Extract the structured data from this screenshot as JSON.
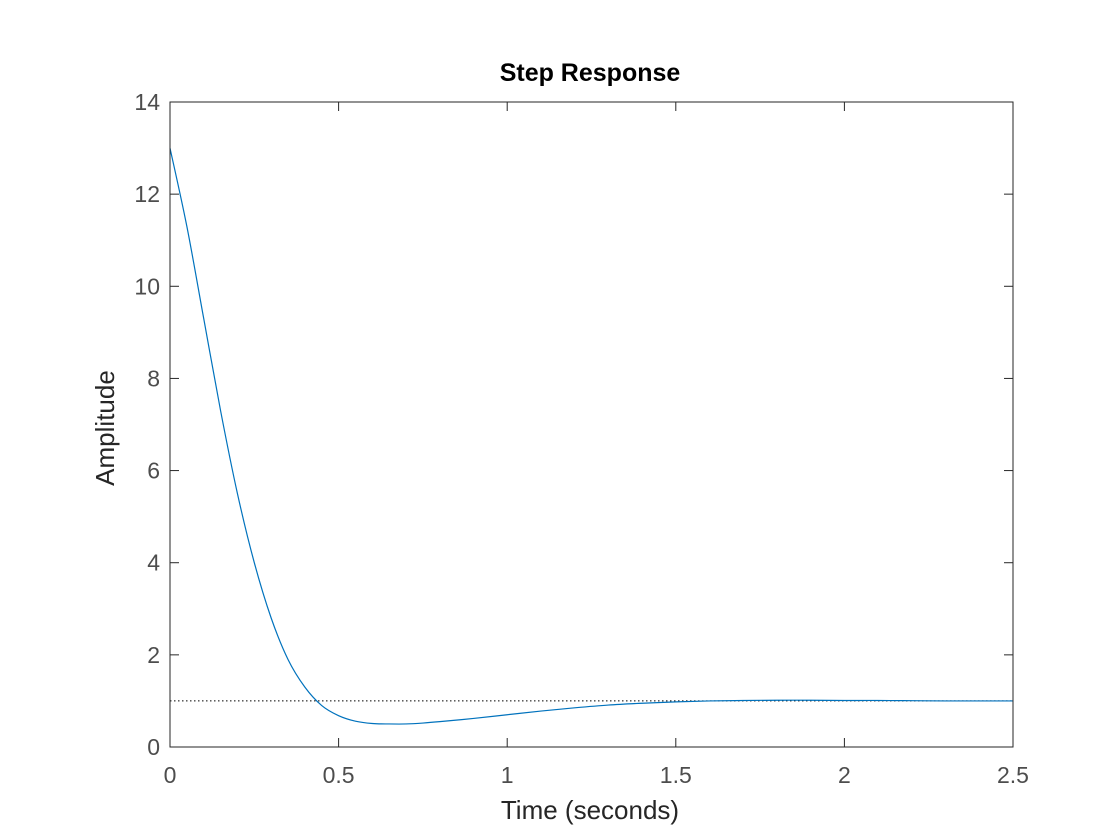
{
  "chart_data": {
    "type": "line",
    "title": "Step Response",
    "xlabel": "Time (seconds)",
    "ylabel": "Amplitude",
    "xlim": [
      0,
      2.5
    ],
    "ylim": [
      0,
      14
    ],
    "xticks": [
      0,
      0.5,
      1,
      1.5,
      2,
      2.5
    ],
    "xtick_labels": [
      "0",
      "0.5",
      "1",
      "1.5",
      "2",
      "2.5"
    ],
    "yticks": [
      0,
      2,
      4,
      6,
      8,
      10,
      12,
      14
    ],
    "ytick_labels": [
      "0",
      "2",
      "4",
      "6",
      "8",
      "10",
      "12",
      "14"
    ],
    "grid": false,
    "series": [
      {
        "color": "#0072bd",
        "x": [
          0,
          0.05,
          0.1,
          0.15,
          0.2,
          0.25,
          0.3,
          0.35,
          0.4,
          0.45,
          0.5,
          0.55,
          0.6,
          0.65,
          0.7,
          0.75,
          0.8,
          0.9,
          1.0,
          1.1,
          1.2,
          1.3,
          1.4,
          1.5,
          1.6,
          1.7,
          1.8,
          1.9,
          2.0,
          2.1,
          2.2,
          2.3,
          2.4,
          2.5
        ],
        "y": [
          13.0,
          11.3,
          9.3,
          7.3,
          5.5,
          4.0,
          2.8,
          1.9,
          1.3,
          0.9,
          0.68,
          0.56,
          0.51,
          0.5,
          0.5,
          0.52,
          0.55,
          0.62,
          0.7,
          0.78,
          0.85,
          0.91,
          0.95,
          0.98,
          1.0,
          1.01,
          1.015,
          1.015,
          1.01,
          1.01,
          1.005,
          1.0,
          1.0,
          1.0
        ]
      }
    ],
    "reference_lines": [
      {
        "y": 1,
        "color": "#000000",
        "style": "dotted"
      }
    ]
  }
}
